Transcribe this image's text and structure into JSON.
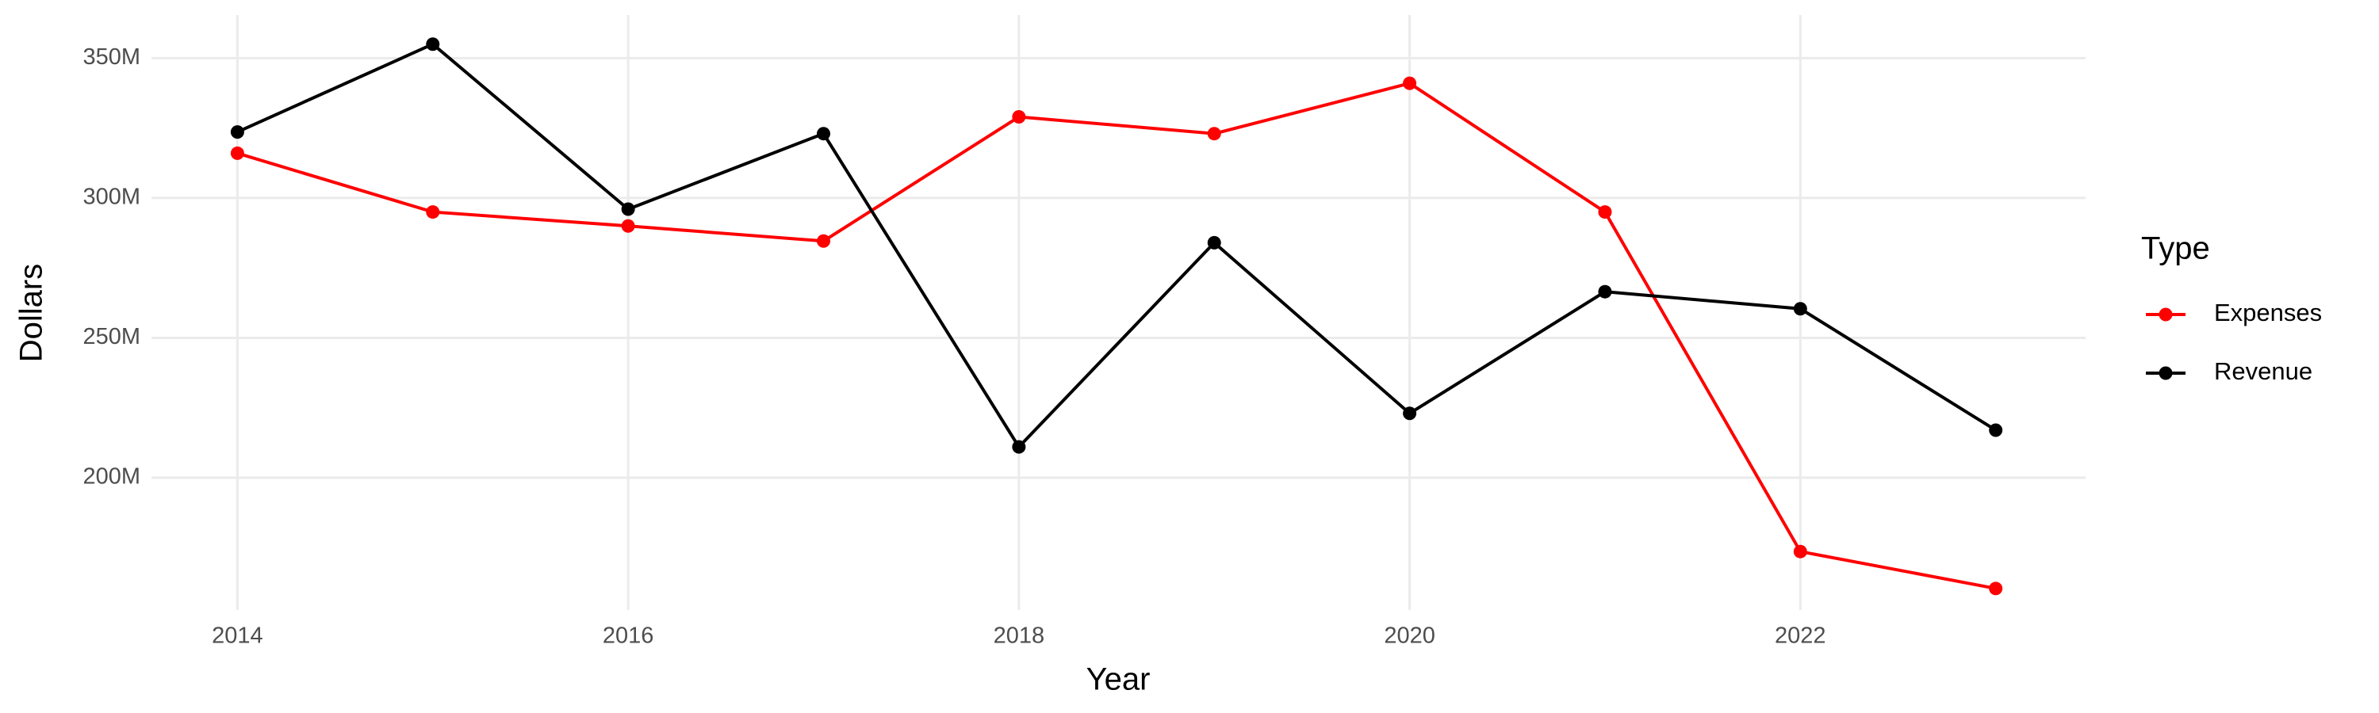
{
  "chart_data": {
    "type": "line",
    "x_label": "Year",
    "y_label": "Dollars",
    "legend_title": "Type",
    "x": [
      2014,
      2015,
      2016,
      2017,
      2018,
      2019,
      2020,
      2021,
      2022,
      2023
    ],
    "series": [
      {
        "name": "Expenses",
        "color": "#ff0000",
        "values": [
          316000000,
          295000000,
          290000000,
          284600000,
          329000000,
          323000000,
          341000000,
          295000000,
          173600000,
          160400000
        ]
      },
      {
        "name": "Revenue",
        "color": "#000000",
        "values": [
          323600000,
          355000000,
          296000000,
          323000000,
          211000000,
          284000000,
          223000000,
          266500000,
          260400000,
          217000000
        ]
      }
    ],
    "xlim": [
      2013.56,
      2023.46
    ],
    "xticks": [
      2014,
      2016,
      2018,
      2020,
      2022
    ],
    "ylim": [
      152700000,
      365400000
    ],
    "yticks": [
      {
        "value": 200000000,
        "label": "200M"
      },
      {
        "value": 250000000,
        "label": "250M"
      },
      {
        "value": 300000000,
        "label": "300M"
      },
      {
        "value": 350000000,
        "label": "350M"
      }
    ],
    "grid": true,
    "legend_position": "right"
  }
}
